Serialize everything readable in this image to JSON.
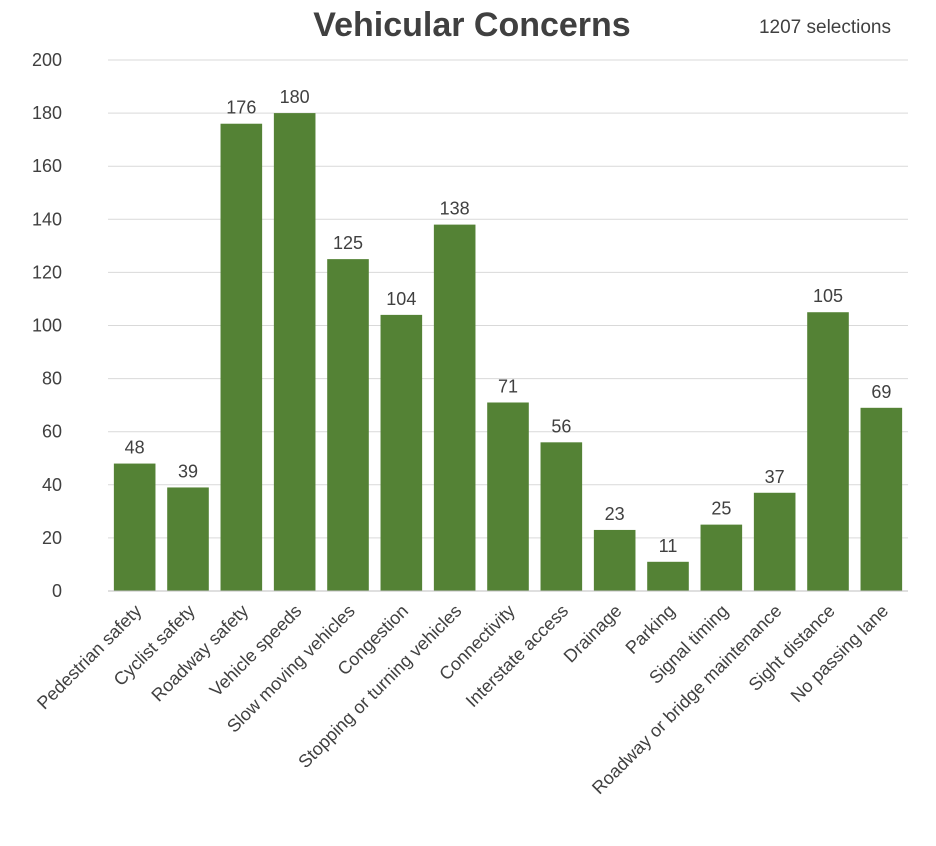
{
  "chart_data": {
    "type": "bar",
    "title": "Vehicular Concerns",
    "subtitle": "1207 selections",
    "xlabel": "",
    "ylabel": "",
    "ylim": [
      0,
      200
    ],
    "yticks": [
      0,
      20,
      40,
      60,
      80,
      100,
      120,
      140,
      160,
      180,
      200
    ],
    "grid": true,
    "legend": "none",
    "bar_color": "#548235",
    "categories": [
      "Pedestrian safety",
      "Cyclist safety",
      "Roadway safety",
      "Vehicle speeds",
      "Slow moving vehicles",
      "Congestion",
      "Stopping or turning vehicles",
      "Connectivity",
      "Interstate access",
      "Drainage",
      "Parking",
      "Signal timing",
      "Roadway or bridge maintenance",
      "Sight distance",
      "No passing lane"
    ],
    "values": [
      48,
      39,
      176,
      180,
      125,
      104,
      138,
      71,
      56,
      23,
      11,
      25,
      37,
      105,
      69
    ]
  }
}
